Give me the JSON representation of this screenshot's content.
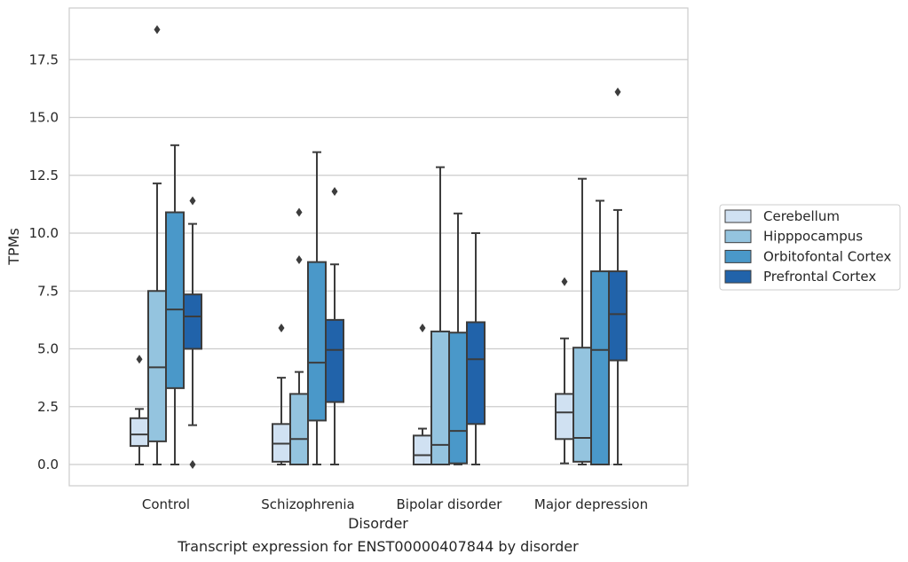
{
  "caption": "Transcript expression for ENST00000407844 by disorder",
  "chart_data": {
    "type": "box",
    "xlabel": "Disorder",
    "ylabel": "TPMs",
    "ylim": [
      -0.9,
      19.7
    ],
    "yticks": [
      "0.0",
      "2.5",
      "5.0",
      "7.5",
      "10.0",
      "12.5",
      "15.0",
      "17.5"
    ],
    "ytick_values": [
      0,
      2.5,
      5,
      7.5,
      10,
      12.5,
      15,
      17.5
    ],
    "categories": [
      "Control",
      "Schizophrenia",
      "Bipolar disorder",
      "Major depression"
    ],
    "grid": "horizontal",
    "legend_position": "right",
    "series": [
      {
        "name": "Cerebellum",
        "color": "#d0e1f2",
        "boxes": [
          {
            "whislo": 0.0,
            "q1": 0.8,
            "med": 1.3,
            "q3": 2.0,
            "whishi": 2.4,
            "fliers": [
              4.55
            ]
          },
          {
            "whislo": 0.0,
            "q1": 0.12,
            "med": 0.9,
            "q3": 1.75,
            "whishi": 3.75,
            "fliers": [
              5.9
            ]
          },
          {
            "whislo": 0.0,
            "q1": 0.0,
            "med": 0.4,
            "q3": 1.25,
            "whishi": 1.55,
            "fliers": [
              5.9
            ]
          },
          {
            "whislo": 0.05,
            "q1": 1.1,
            "med": 2.25,
            "q3": 3.05,
            "whishi": 5.45,
            "fliers": [
              7.9
            ]
          }
        ]
      },
      {
        "name": "Hipppocampus",
        "color": "#94c4df",
        "boxes": [
          {
            "whislo": 0.0,
            "q1": 1.0,
            "med": 4.2,
            "q3": 7.5,
            "whishi": 12.15,
            "fliers": [
              18.8
            ]
          },
          {
            "whislo": 0.0,
            "q1": 0.0,
            "med": 1.1,
            "q3": 3.05,
            "whishi": 4.0,
            "fliers": [
              8.85,
              10.9
            ]
          },
          {
            "whislo": 0.0,
            "q1": 0.0,
            "med": 0.85,
            "q3": 5.75,
            "whishi": 12.85,
            "fliers": []
          },
          {
            "whislo": 0.0,
            "q1": 0.12,
            "med": 1.15,
            "q3": 5.05,
            "whishi": 12.35,
            "fliers": []
          }
        ]
      },
      {
        "name": "Orbitofontal Cortex",
        "color": "#4a98c9",
        "boxes": [
          {
            "whislo": 0.0,
            "q1": 3.3,
            "med": 6.7,
            "q3": 10.9,
            "whishi": 13.8,
            "fliers": []
          },
          {
            "whislo": 0.0,
            "q1": 1.9,
            "med": 4.4,
            "q3": 8.75,
            "whishi": 13.5,
            "fliers": []
          },
          {
            "whislo": 0.0,
            "q1": 0.05,
            "med": 1.45,
            "q3": 5.7,
            "whishi": 10.85,
            "fliers": []
          },
          {
            "whislo": 0.0,
            "q1": 0.0,
            "med": 4.95,
            "q3": 8.35,
            "whishi": 11.4,
            "fliers": []
          }
        ]
      },
      {
        "name": "Prefrontal Cortex",
        "color": "#2163aa",
        "boxes": [
          {
            "whislo": 1.7,
            "q1": 5.0,
            "med": 6.4,
            "q3": 7.35,
            "whishi": 10.4,
            "fliers": [
              11.4,
              0.0
            ]
          },
          {
            "whislo": 0.0,
            "q1": 2.7,
            "med": 4.95,
            "q3": 6.25,
            "whishi": 8.65,
            "fliers": [
              11.8
            ]
          },
          {
            "whislo": 0.0,
            "q1": 1.75,
            "med": 4.55,
            "q3": 6.15,
            "whishi": 10.0,
            "fliers": []
          },
          {
            "whislo": 0.0,
            "q1": 4.5,
            "med": 6.5,
            "q3": 8.35,
            "whishi": 11.0,
            "fliers": [
              16.1
            ]
          }
        ]
      }
    ]
  }
}
